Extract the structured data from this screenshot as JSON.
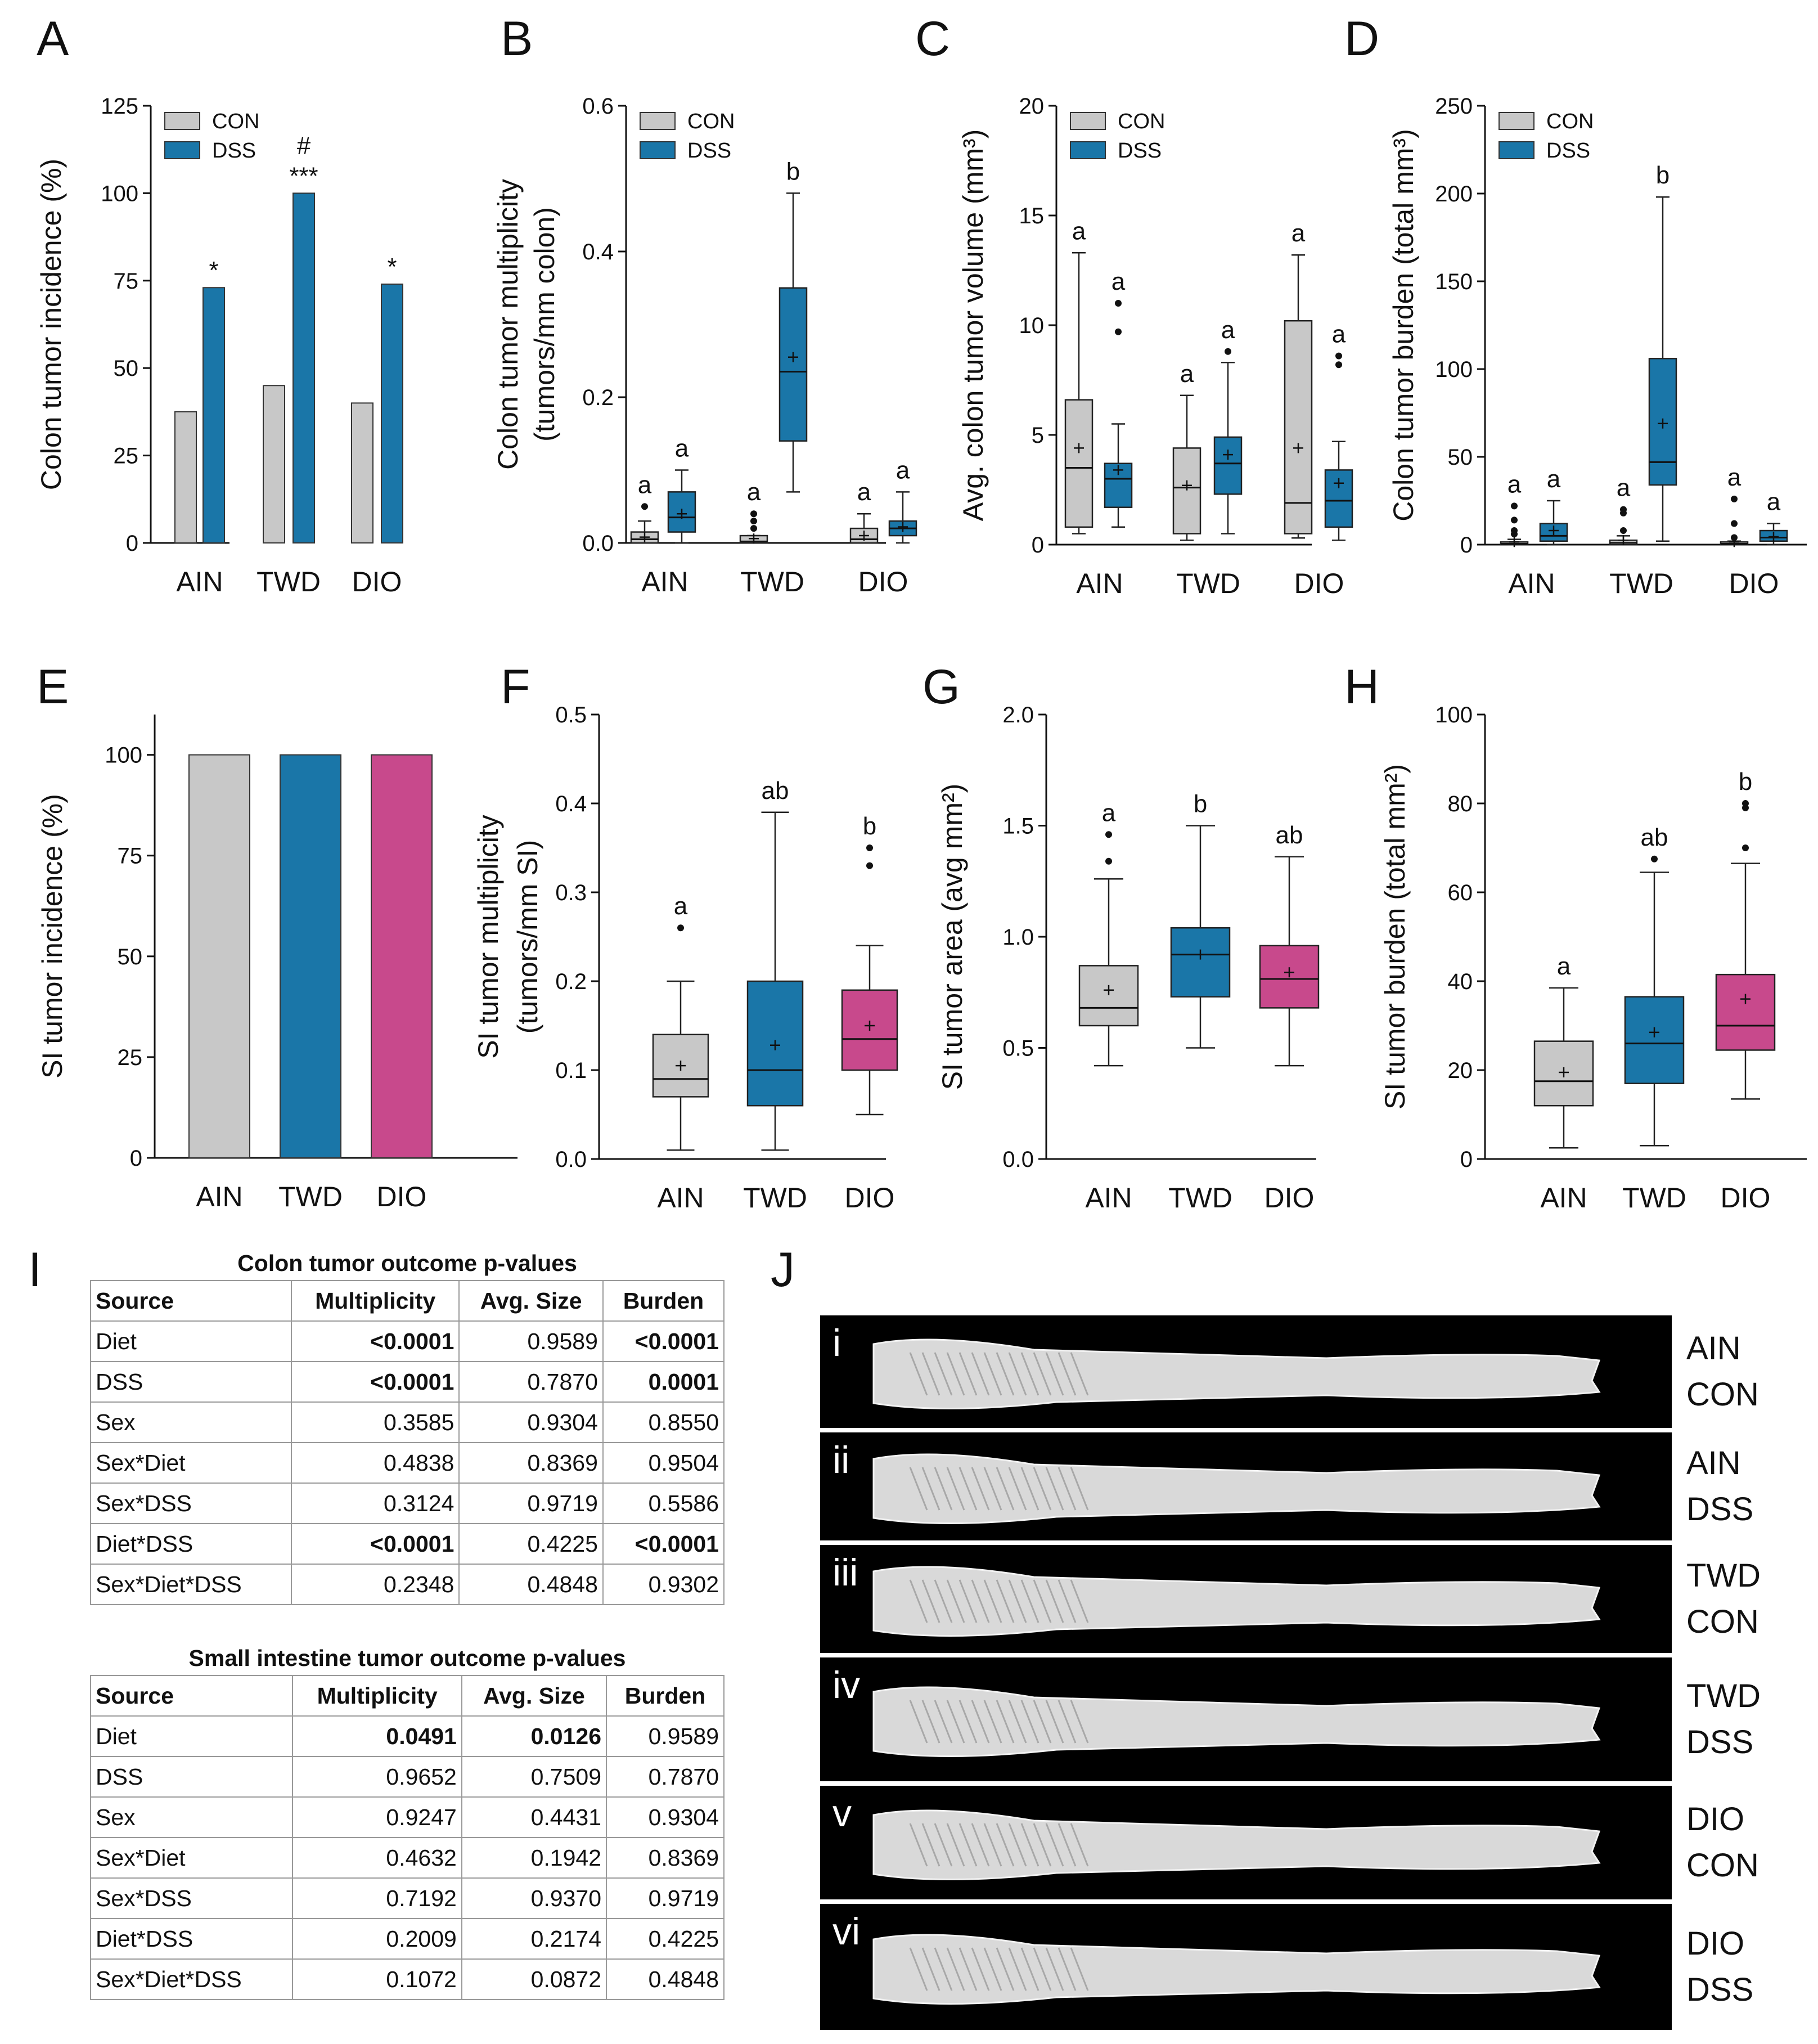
{
  "chart_data": [
    {
      "panel": "A",
      "type": "bar",
      "ylabel": "Colon tumor incidence (%)",
      "ylim": [
        0,
        125
      ],
      "yticks": [
        0,
        25,
        50,
        75,
        100,
        125
      ],
      "categories": [
        "AIN",
        "TWD",
        "DIO"
      ],
      "legend": [
        "CON",
        "DSS"
      ],
      "legend_position": "top-left",
      "series": [
        {
          "name": "CON",
          "color": "#c8c8c8",
          "values": [
            37.5,
            45,
            40
          ]
        },
        {
          "name": "DSS",
          "color": "#1a76a8",
          "values": [
            73,
            100,
            74
          ],
          "annotations": [
            "*",
            "***",
            "*"
          ]
        }
      ],
      "extra_annotation": {
        "category": "TWD",
        "text": "#"
      }
    },
    {
      "panel": "B",
      "type": "box",
      "ylabel": "Colon tumor multiplicity",
      "ylabel2": "(tumors/mm colon)",
      "ylim": [
        0,
        0.6
      ],
      "yticks": [
        0.0,
        0.2,
        0.4,
        0.6
      ],
      "categories": [
        "AIN",
        "TWD",
        "DIO"
      ],
      "legend": [
        "CON",
        "DSS"
      ],
      "boxes": [
        {
          "cat": "AIN",
          "group": "CON",
          "min": 0,
          "q1": 0,
          "median": 0.005,
          "q3": 0.015,
          "max": 0.03,
          "mean": 0.008,
          "outliers": [
            0.05
          ],
          "letter": "a"
        },
        {
          "cat": "AIN",
          "group": "DSS",
          "min": 0,
          "q1": 0.015,
          "median": 0.035,
          "q3": 0.07,
          "max": 0.1,
          "mean": 0.04,
          "outliers": [],
          "letter": "a"
        },
        {
          "cat": "TWD",
          "group": "CON",
          "min": 0,
          "q1": 0,
          "median": 0.002,
          "q3": 0.01,
          "max": 0.01,
          "mean": 0.006,
          "outliers": [
            0.02,
            0.03,
            0.04
          ],
          "letter": "a"
        },
        {
          "cat": "TWD",
          "group": "DSS",
          "min": 0.07,
          "q1": 0.14,
          "median": 0.235,
          "q3": 0.35,
          "max": 0.48,
          "mean": 0.255,
          "outliers": [],
          "letter": "b"
        },
        {
          "cat": "DIO",
          "group": "CON",
          "min": 0,
          "q1": 0,
          "median": 0.005,
          "q3": 0.02,
          "max": 0.04,
          "mean": 0.01,
          "outliers": [],
          "letter": "a"
        },
        {
          "cat": "DIO",
          "group": "DSS",
          "min": 0,
          "q1": 0.01,
          "median": 0.02,
          "q3": 0.03,
          "max": 0.07,
          "mean": 0.022,
          "outliers": [],
          "letter": "a"
        }
      ]
    },
    {
      "panel": "C",
      "type": "box",
      "ylabel": "Avg. colon tumor volume (mm³)",
      "ylim": [
        0,
        20
      ],
      "yticks": [
        0,
        5,
        10,
        15,
        20
      ],
      "categories": [
        "AIN",
        "TWD",
        "DIO"
      ],
      "legend": [
        "CON",
        "DSS"
      ],
      "boxes": [
        {
          "cat": "AIN",
          "group": "CON",
          "min": 0.5,
          "q1": 0.8,
          "median": 3.5,
          "q3": 6.6,
          "max": 13.3,
          "mean": 4.4,
          "outliers": [],
          "letter": "a"
        },
        {
          "cat": "AIN",
          "group": "DSS",
          "min": 0.8,
          "q1": 1.7,
          "median": 3.0,
          "q3": 3.7,
          "max": 5.5,
          "mean": 3.4,
          "outliers": [
            9.7,
            11.0
          ],
          "letter": "a"
        },
        {
          "cat": "TWD",
          "group": "CON",
          "min": 0.2,
          "q1": 0.5,
          "median": 2.6,
          "q3": 4.4,
          "max": 6.8,
          "mean": 2.7,
          "outliers": [],
          "letter": "a"
        },
        {
          "cat": "TWD",
          "group": "DSS",
          "min": 0.5,
          "q1": 2.3,
          "median": 3.7,
          "q3": 4.9,
          "max": 8.3,
          "mean": 4.1,
          "outliers": [
            8.8
          ],
          "letter": "a"
        },
        {
          "cat": "DIO",
          "group": "CON",
          "min": 0.3,
          "q1": 0.5,
          "median": 1.9,
          "q3": 10.2,
          "max": 13.2,
          "mean": 4.4,
          "outliers": [],
          "letter": "a"
        },
        {
          "cat": "DIO",
          "group": "DSS",
          "min": 0.2,
          "q1": 0.8,
          "median": 2.0,
          "q3": 3.4,
          "max": 4.7,
          "mean": 2.8,
          "outliers": [
            8.2,
            8.6
          ],
          "letter": "a"
        }
      ]
    },
    {
      "panel": "D",
      "type": "box",
      "ylabel": "Colon tumor burden (total mm³)",
      "ylim": [
        0,
        250
      ],
      "yticks": [
        0,
        50,
        100,
        150,
        200,
        250
      ],
      "categories": [
        "AIN",
        "TWD",
        "DIO"
      ],
      "legend": [
        "CON",
        "DSS"
      ],
      "boxes": [
        {
          "cat": "AIN",
          "group": "CON",
          "min": 0,
          "q1": 0,
          "median": 0.5,
          "q3": 1.5,
          "max": 3,
          "mean": 1.5,
          "outliers": [
            6,
            8,
            14,
            22
          ],
          "letter": "a"
        },
        {
          "cat": "AIN",
          "group": "DSS",
          "min": 0,
          "q1": 2,
          "median": 5,
          "q3": 12,
          "max": 25,
          "mean": 8,
          "outliers": [],
          "letter": "a"
        },
        {
          "cat": "TWD",
          "group": "CON",
          "min": 0,
          "q1": 0,
          "median": 1,
          "q3": 2.5,
          "max": 5,
          "mean": 2.5,
          "outliers": [
            8,
            18,
            20
          ],
          "letter": "a"
        },
        {
          "cat": "TWD",
          "group": "DSS",
          "min": 2,
          "q1": 34,
          "median": 47,
          "q3": 106,
          "max": 198,
          "mean": 69,
          "outliers": [],
          "letter": "b"
        },
        {
          "cat": "DIO",
          "group": "CON",
          "min": 0,
          "q1": 0,
          "median": 0.5,
          "q3": 1.5,
          "max": 2,
          "mean": 1.5,
          "outliers": [
            4,
            12,
            26
          ],
          "letter": "a"
        },
        {
          "cat": "DIO",
          "group": "DSS",
          "min": 0,
          "q1": 2,
          "median": 4,
          "q3": 8,
          "max": 12,
          "mean": 4.5,
          "outliers": [],
          "letter": "a"
        }
      ]
    },
    {
      "panel": "E",
      "type": "bar",
      "ylabel": "SI tumor incidence (%)",
      "ylim": [
        0,
        110
      ],
      "yticks": [
        0,
        25,
        50,
        75,
        100
      ],
      "categories": [
        "AIN",
        "TWD",
        "DIO"
      ],
      "values": [
        100,
        100,
        100
      ],
      "colors": [
        "#c8c8c8",
        "#1a76a8",
        "#c8498c"
      ]
    },
    {
      "panel": "F",
      "type": "box",
      "ylabel": "SI tumor multiplicity",
      "ylabel2": "(tumors/mm SI)",
      "ylim": [
        0,
        0.5
      ],
      "yticks": [
        0.0,
        0.1,
        0.2,
        0.3,
        0.4,
        0.5
      ],
      "categories": [
        "AIN",
        "TWD",
        "DIO"
      ],
      "boxes": [
        {
          "cat": "AIN",
          "min": 0.01,
          "q1": 0.07,
          "median": 0.09,
          "q3": 0.14,
          "max": 0.2,
          "mean": 0.105,
          "outliers": [
            0.26
          ],
          "letter": "a",
          "color": "#c8c8c8"
        },
        {
          "cat": "TWD",
          "min": 0.01,
          "q1": 0.06,
          "median": 0.1,
          "q3": 0.2,
          "max": 0.39,
          "mean": 0.128,
          "outliers": [],
          "letter": "ab",
          "color": "#1a76a8"
        },
        {
          "cat": "DIO",
          "min": 0.05,
          "q1": 0.1,
          "median": 0.135,
          "q3": 0.19,
          "max": 0.24,
          "mean": 0.15,
          "outliers": [
            0.33,
            0.35
          ],
          "letter": "b",
          "color": "#c8498c"
        }
      ]
    },
    {
      "panel": "G",
      "type": "box",
      "ylabel": "SI tumor area (avg mm²)",
      "ylim": [
        0,
        2.0
      ],
      "yticks": [
        0.0,
        0.5,
        1.0,
        1.5,
        2.0
      ],
      "categories": [
        "AIN",
        "TWD",
        "DIO"
      ],
      "boxes": [
        {
          "cat": "AIN",
          "min": 0.42,
          "q1": 0.6,
          "median": 0.68,
          "q3": 0.87,
          "max": 1.26,
          "mean": 0.76,
          "outliers": [
            1.34,
            1.46
          ],
          "letter": "a",
          "color": "#c8c8c8"
        },
        {
          "cat": "TWD",
          "min": 0.5,
          "q1": 0.73,
          "median": 0.92,
          "q3": 1.04,
          "max": 1.5,
          "mean": 0.92,
          "outliers": [],
          "letter": "b",
          "color": "#1a76a8"
        },
        {
          "cat": "DIO",
          "min": 0.42,
          "q1": 0.68,
          "median": 0.81,
          "q3": 0.96,
          "max": 1.36,
          "mean": 0.84,
          "outliers": [],
          "letter": "ab",
          "color": "#c8498c"
        }
      ]
    },
    {
      "panel": "H",
      "type": "box",
      "ylabel": "SI tumor burden (total mm²)",
      "ylim": [
        0,
        100
      ],
      "yticks": [
        0,
        20,
        40,
        60,
        80,
        100
      ],
      "categories": [
        "AIN",
        "TWD",
        "DIO"
      ],
      "boxes": [
        {
          "cat": "AIN",
          "min": 2.5,
          "q1": 12,
          "median": 17.5,
          "q3": 26.5,
          "max": 38.5,
          "mean": 19.5,
          "outliers": [],
          "letter": "a",
          "color": "#c8c8c8"
        },
        {
          "cat": "TWD",
          "min": 3,
          "q1": 17,
          "median": 26,
          "q3": 36.5,
          "max": 64.5,
          "mean": 28.5,
          "outliers": [
            67.5
          ],
          "letter": "ab",
          "color": "#1a76a8"
        },
        {
          "cat": "DIO",
          "min": 13.5,
          "q1": 24.5,
          "median": 30,
          "q3": 41.5,
          "max": 66.5,
          "mean": 36,
          "outliers": [
            70,
            79,
            80
          ],
          "letter": "b",
          "color": "#c8498c"
        }
      ]
    }
  ],
  "tables": {
    "panel": "I",
    "headers": [
      "Source",
      "Multiplicity",
      "Avg. Size",
      "Burden"
    ],
    "colon": {
      "title": "Colon tumor outcome p-values",
      "rows": [
        [
          "Diet",
          "<0.0001",
          "0.9589",
          "<0.0001"
        ],
        [
          "DSS",
          "<0.0001",
          "0.7870",
          "0.0001"
        ],
        [
          "Sex",
          "0.3585",
          "0.9304",
          "0.8550"
        ],
        [
          "Sex*Diet",
          "0.4838",
          "0.8369",
          "0.9504"
        ],
        [
          "Sex*DSS",
          "0.3124",
          "0.9719",
          "0.5586"
        ],
        [
          "Diet*DSS",
          "<0.0001",
          "0.4225",
          "<0.0001"
        ],
        [
          "Sex*Diet*DSS",
          "0.2348",
          "0.4848",
          "0.9302"
        ]
      ],
      "bold": [
        [
          0,
          1
        ],
        [
          0,
          3
        ],
        [
          1,
          1
        ],
        [
          1,
          3
        ],
        [
          5,
          1
        ],
        [
          5,
          3
        ]
      ]
    },
    "si": {
      "title": "Small intestine tumor outcome p-values",
      "rows": [
        [
          "Diet",
          "0.0491",
          "0.0126",
          "0.9589"
        ],
        [
          "DSS",
          "0.9652",
          "0.7509",
          "0.7870"
        ],
        [
          "Sex",
          "0.9247",
          "0.4431",
          "0.9304"
        ],
        [
          "Sex*Diet",
          "0.4632",
          "0.1942",
          "0.8369"
        ],
        [
          "Sex*DSS",
          "0.7192",
          "0.9370",
          "0.9719"
        ],
        [
          "Diet*DSS",
          "0.2009",
          "0.2174",
          "0.4225"
        ],
        [
          "Sex*Diet*DSS",
          "0.1072",
          "0.0872",
          "0.4848"
        ]
      ],
      "bold": [
        [
          0,
          1
        ],
        [
          0,
          2
        ]
      ]
    }
  },
  "photos": {
    "panel": "J",
    "strips": [
      {
        "roman": "i",
        "label1": "AIN",
        "label2": "CON"
      },
      {
        "roman": "ii",
        "label1": "AIN",
        "label2": "DSS"
      },
      {
        "roman": "iii",
        "label1": "TWD",
        "label2": "CON"
      },
      {
        "roman": "iv",
        "label1": "TWD",
        "label2": "DSS"
      },
      {
        "roman": "v",
        "label1": "DIO",
        "label2": "CON"
      },
      {
        "roman": "vi",
        "label1": "DIO",
        "label2": "DSS"
      }
    ]
  }
}
